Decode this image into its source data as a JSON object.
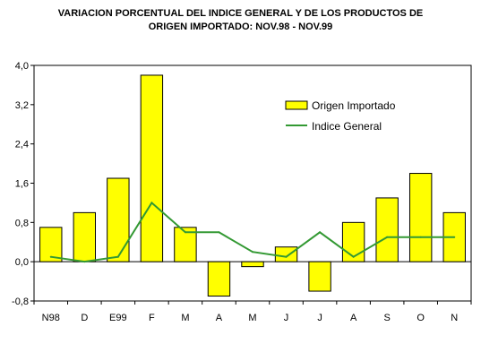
{
  "chart_data": {
    "type": "bar",
    "title_lines": [
      "VARIACION PORCENTUAL DEL INDICE GENERAL Y DE LOS PRODUCTOS DE",
      "ORIGEN IMPORTADO: NOV.98 - NOV.99"
    ],
    "categories": [
      "N98",
      "D",
      "E99",
      "F",
      "M",
      "A",
      "M",
      "J",
      "J",
      "A",
      "S",
      "O",
      "N"
    ],
    "series": [
      {
        "name": "Origen Importado",
        "kind": "bar",
        "color": "#ffff00",
        "values": [
          0.7,
          1.0,
          1.7,
          3.8,
          0.7,
          -0.7,
          -0.1,
          0.3,
          -0.6,
          0.8,
          1.3,
          1.8,
          1.0
        ]
      },
      {
        "name": "Indice General",
        "kind": "line",
        "color": "#339933",
        "values": [
          0.1,
          0.0,
          0.1,
          1.2,
          0.6,
          0.6,
          0.2,
          0.1,
          0.6,
          0.1,
          0.5,
          0.5,
          0.5
        ]
      }
    ],
    "ylim": [
      -0.8,
      4.0
    ],
    "yticks": [
      "-0,8",
      "0,0",
      "0,8",
      "1,6",
      "2,4",
      "3,2",
      "4,0"
    ],
    "ytick_values": [
      -0.8,
      0.0,
      0.8,
      1.6,
      2.4,
      3.2,
      4.0
    ],
    "grid": false,
    "legend_position": "top-right"
  }
}
